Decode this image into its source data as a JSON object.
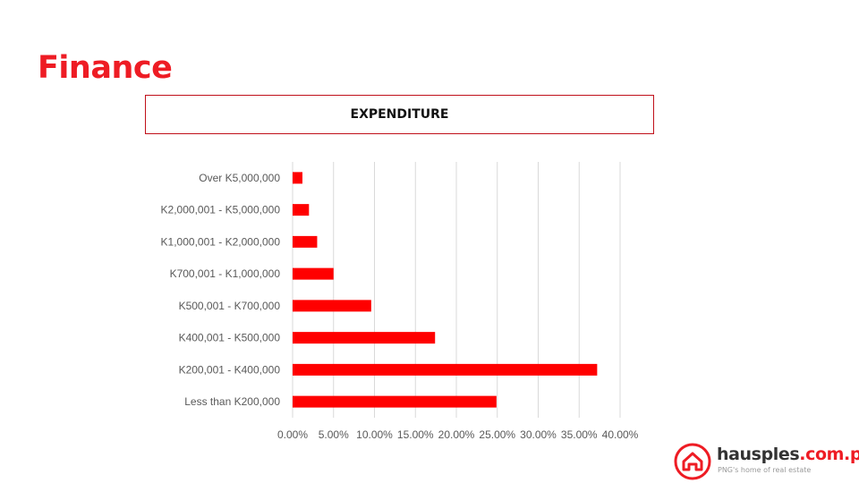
{
  "page": {
    "title": "Finance"
  },
  "chart_data": {
    "type": "bar",
    "orientation": "horizontal",
    "title": "EXPENDITURE",
    "categories": [
      "Over K5,000,000",
      "K2,000,001 - K5,000,000",
      "K1,000,001 - K2,000,000",
      "K700,001 - K1,000,000",
      "K500,001 - K700,000",
      "K400,001 - K500,000",
      "K200,001 - K400,000",
      "Less than K200,000"
    ],
    "values": [
      1.2,
      2.0,
      3.0,
      5.0,
      9.6,
      17.4,
      37.2,
      24.9
    ],
    "x_ticks": [
      "0.00%",
      "5.00%",
      "10.00%",
      "15.00%",
      "20.00%",
      "25.00%",
      "30.00%",
      "35.00%",
      "40.00%"
    ],
    "xlim": [
      0,
      40
    ],
    "grid": true,
    "legend": "none",
    "bar_color": "#ff0000",
    "xlabel": "",
    "ylabel": ""
  },
  "brand": {
    "icon": "house-logo-icon",
    "name": "hausples",
    "tld": ".com.pg",
    "tagline": "PNG's home of real estate",
    "color": "#ee1c24"
  }
}
